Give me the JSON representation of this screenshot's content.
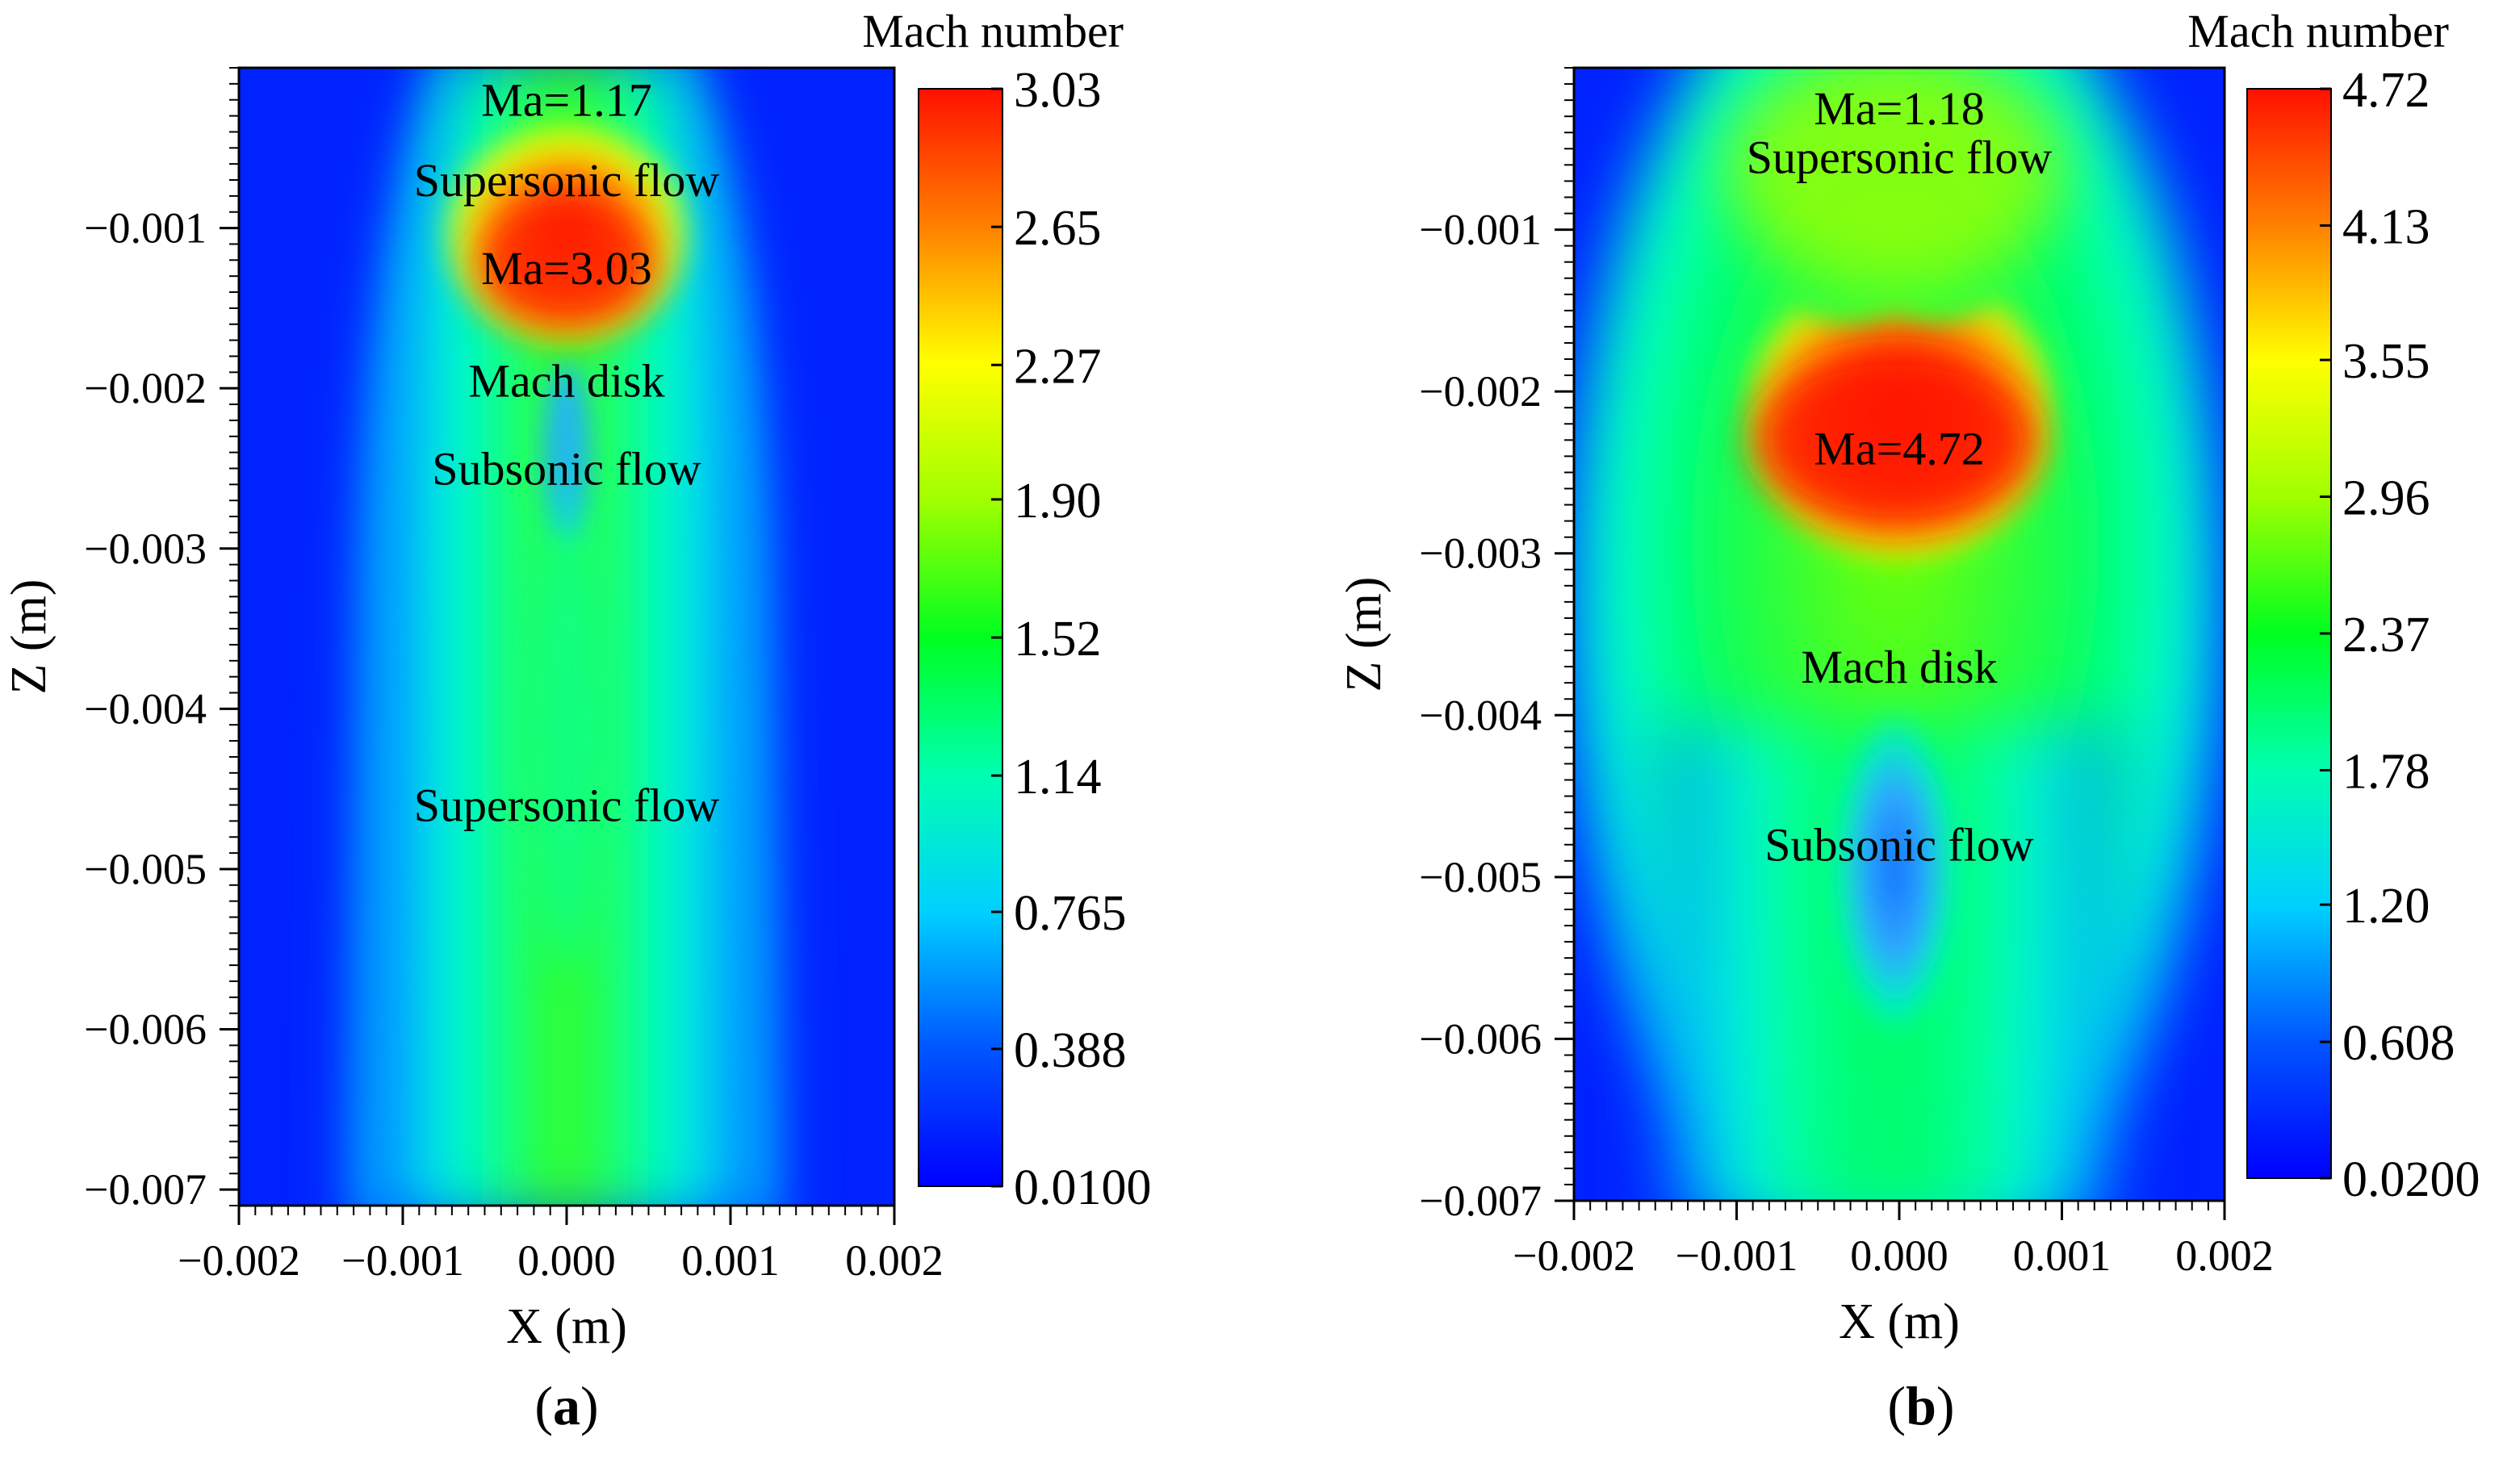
{
  "chart_data": [
    {
      "type": "heatmap",
      "panel": "a",
      "panel_label_open": "(",
      "panel_label_letter": "a",
      "panel_label_close": ")",
      "xlabel": "X (m)",
      "ylabel": "Z (m)",
      "xlim": [
        -0.002,
        0.002
      ],
      "ylim": [
        -0.0071,
        0.0
      ],
      "xticks": [
        -0.002,
        -0.001,
        0.0,
        0.001,
        0.002
      ],
      "xtick_labels": [
        "−0.002",
        "−0.001",
        "0.000",
        "0.001",
        "0.002"
      ],
      "yticks": [
        -0.001,
        -0.002,
        -0.003,
        -0.004,
        -0.005,
        -0.006,
        -0.007
      ],
      "ytick_labels": [
        "−0.001",
        "−0.002",
        "−0.003",
        "−0.004",
        "−0.005",
        "−0.006",
        "−0.007"
      ],
      "colorbar": {
        "title": "Mach number",
        "min": 0.01,
        "max": 3.03,
        "tick_values": [
          3.03,
          2.65,
          2.27,
          1.9,
          1.52,
          1.14,
          0.765,
          0.388,
          0.01
        ],
        "tick_labels": [
          "3.03",
          "2.65",
          "2.27",
          "1.90",
          "1.52",
          "1.14",
          "0.765",
          "0.388",
          "0.0100"
        ]
      },
      "field": {
        "jet_width_top": 0.00052,
        "jet_width_bottom": 0.00072,
        "core_value": 1.75,
        "hot_spot": {
          "x": 0.0,
          "z": -0.0012,
          "value": 3.03
        }
      },
      "annotations": [
        {
          "text": "Ma=1.17",
          "x": 0.0,
          "z": -0.0002
        },
        {
          "text": "Supersonic flow",
          "x": 0.0,
          "z": -0.0007
        },
        {
          "text": "Ma=3.03",
          "x": 0.0,
          "z": -0.00125
        },
        {
          "text": "Mach disk",
          "x": 0.0,
          "z": -0.00195
        },
        {
          "text": "Subsonic flow",
          "x": 0.0,
          "z": -0.0025
        },
        {
          "text": "Supersonic flow",
          "x": 0.0,
          "z": -0.0046
        }
      ]
    },
    {
      "type": "heatmap",
      "panel": "b",
      "panel_label_open": "(",
      "panel_label_letter": "b",
      "panel_label_close": ")",
      "xlabel": "X (m)",
      "ylabel": "Z (m)",
      "xlim": [
        -0.002,
        0.002
      ],
      "ylim": [
        -0.007,
        0.0
      ],
      "xticks": [
        -0.002,
        -0.001,
        0.0,
        0.001,
        0.002
      ],
      "xtick_labels": [
        "−0.002",
        "−0.001",
        "0.000",
        "0.001",
        "0.002"
      ],
      "yticks": [
        -0.001,
        -0.002,
        -0.003,
        -0.004,
        -0.005,
        -0.006,
        -0.007
      ],
      "ytick_labels": [
        "−0.001",
        "−0.002",
        "−0.003",
        "−0.004",
        "−0.005",
        "−0.006",
        "−0.007"
      ],
      "colorbar": {
        "title": "Mach number",
        "min": 0.02,
        "max": 4.72,
        "tick_values": [
          4.72,
          4.13,
          3.55,
          2.96,
          2.37,
          1.78,
          1.2,
          0.608,
          0.02
        ],
        "tick_labels": [
          "4.72",
          "4.13",
          "3.55",
          "2.96",
          "2.37",
          "1.78",
          "1.20",
          "0.608",
          "0.0200"
        ]
      },
      "field": {
        "hot_spot": {
          "x": 0.0,
          "z": -0.0024,
          "value": 4.72
        },
        "subsonic_spot": {
          "x": 0.0,
          "z": -0.0052,
          "value": 0.6
        }
      },
      "annotations": [
        {
          "text": "Ma=1.18",
          "x": 0.0,
          "z": -0.00025
        },
        {
          "text": "Supersonic flow",
          "x": 0.0,
          "z": -0.00055
        },
        {
          "text": "Ma=4.72",
          "x": 0.0,
          "z": -0.00235
        },
        {
          "text": "Mach disk",
          "x": 0.0,
          "z": -0.0037
        },
        {
          "text": "Subsonic flow",
          "x": 0.0,
          "z": -0.0048
        }
      ]
    }
  ]
}
